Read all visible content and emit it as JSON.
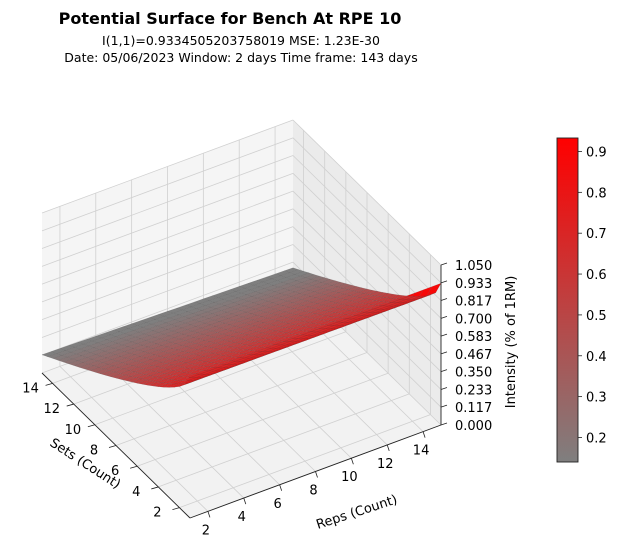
{
  "chart_data": {
    "type": "surface3d",
    "title": "Potential Surface for Bench At RPE 10",
    "subtitle_lines": [
      "I(1,1)=0.9334505203758019 MSE: 1.23E-30",
      "Date: 05/06/2023  Window: 2 days  Time frame: 143 days"
    ],
    "xlabel": "Sets (Count)",
    "ylabel": "Reps (Count)",
    "zlabel": "Intensity (% of 1RM)",
    "x_ticks": [
      "2",
      "4",
      "6",
      "8",
      "10",
      "12",
      "14"
    ],
    "y_ticks": [
      "2",
      "4",
      "6",
      "8",
      "10",
      "12",
      "14"
    ],
    "z_ticks": [
      "0.000",
      "0.117",
      "0.233",
      "0.350",
      "0.467",
      "0.583",
      "0.700",
      "0.817",
      "0.933",
      "1.050"
    ],
    "x_range": [
      1,
      15
    ],
    "y_range": [
      1,
      15
    ],
    "z_range": [
      0,
      1.05
    ],
    "corner_values": {
      "sets_1_reps_1": 0.933,
      "sets_15_reps_1": 0.12,
      "sets_1_reps_15": 0.93,
      "sets_15_reps_15": 0.08
    },
    "colorbar": {
      "min": 0.14,
      "max": 0.933,
      "ticks": [
        "0.2",
        "0.3",
        "0.4",
        "0.5",
        "0.6",
        "0.7",
        "0.8",
        "0.9"
      ],
      "tick_values": [
        0.2,
        0.3,
        0.4,
        0.5,
        0.6,
        0.7,
        0.8,
        0.9
      ],
      "color_low": "#7f7f7f",
      "color_high": "#ff0000"
    },
    "grid": true
  }
}
